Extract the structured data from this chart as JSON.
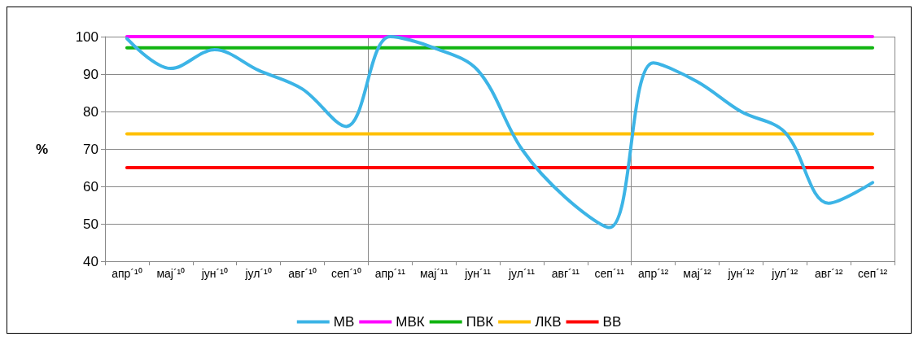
{
  "chart_data": {
    "type": "line",
    "ylabel": "%",
    "categories": [
      "апр´¹⁰",
      "мај´¹⁰",
      "јун´¹⁰",
      "јул´¹⁰",
      "авг´¹⁰",
      "сеп´¹⁰",
      "апр´¹¹",
      "мај´¹¹",
      "јун´¹¹",
      "јул´¹¹",
      "авг´¹¹",
      "сеп´¹¹",
      "апр´¹²",
      "мај´¹²",
      "јун´¹²",
      "јул´¹²",
      "авг´¹²",
      "сеп´¹²"
    ],
    "series": [
      {
        "name": "МВ",
        "color": "#3cb4e6",
        "values": [
          99.5,
          91.5,
          96.5,
          91,
          86,
          76,
          100,
          97,
          91,
          70,
          57,
          49,
          93,
          88,
          80,
          74.5,
          55.5,
          61
        ]
      },
      {
        "name": "МВК",
        "color": "#ff00ff",
        "values": [
          100,
          100,
          100,
          100,
          100,
          100,
          100,
          100,
          100,
          100,
          100,
          100,
          100,
          100,
          100,
          100,
          100,
          100
        ]
      },
      {
        "name": "ПВК",
        "color": "#11b411",
        "values": [
          97,
          97,
          97,
          97,
          97,
          97,
          97,
          97,
          97,
          97,
          97,
          97,
          97,
          97,
          97,
          97,
          97,
          97
        ]
      },
      {
        "name": "ЛКВ",
        "color": "#ffc000",
        "values": [
          74,
          74,
          74,
          74,
          74,
          74,
          74,
          74,
          74,
          74,
          74,
          74,
          74,
          74,
          74,
          74,
          74,
          74
        ]
      },
      {
        "name": "ВВ",
        "color": "#ff0000",
        "values": [
          65,
          65,
          65,
          65,
          65,
          65,
          65,
          65,
          65,
          65,
          65,
          65,
          65,
          65,
          65,
          65,
          65,
          65
        ]
      }
    ],
    "ylim": [
      40,
      100
    ],
    "yticks": [
      40,
      50,
      60,
      70,
      80,
      90,
      100
    ],
    "grid": true,
    "legend": "bottom",
    "marker": "none",
    "line_style": "solid"
  }
}
